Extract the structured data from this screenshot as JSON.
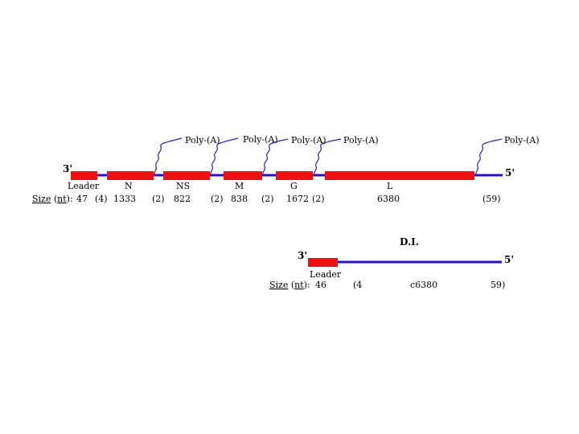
{
  "colors": {
    "backbone": "#2a12c8",
    "gene": "#ee1111",
    "polyA_line": "#3a1ab0",
    "text": "#000000"
  },
  "genome": {
    "end3": "3'",
    "end5": "5'",
    "genes": [
      {
        "id": "leader",
        "label": "Leader"
      },
      {
        "id": "N",
        "label": "N"
      },
      {
        "id": "NS",
        "label": "NS"
      },
      {
        "id": "M",
        "label": "M"
      },
      {
        "id": "G",
        "label": "G"
      },
      {
        "id": "L",
        "label": "L"
      }
    ],
    "polyA_label": "Poly-(A)",
    "polyA_count": 5,
    "size_prefix": "Size",
    "size_unit": "nt",
    "size_colon": "):",
    "sizes": [
      "47",
      "(4)",
      "1333",
      "(2)",
      "822",
      "(2)",
      "838",
      "(2)",
      "1672",
      "(2)",
      "6380",
      "(59)"
    ]
  },
  "di": {
    "title": "D.I.",
    "end3": "3'",
    "end5": "5'",
    "leader_label": "Leader",
    "size_prefix": "Size",
    "size_unit": "nt",
    "size_colon": "):",
    "sizes": [
      "46",
      "(4",
      "c6380",
      "59)"
    ]
  }
}
